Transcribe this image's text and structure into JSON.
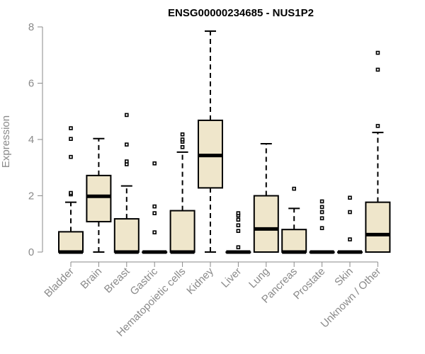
{
  "chart_data": {
    "type": "boxplot",
    "title": "ENSG00000234685 - NUS1P2",
    "xlabel": "",
    "ylabel": "Expression",
    "ylim": [
      0,
      8
    ],
    "yticks": [
      0,
      2,
      4,
      6,
      8
    ],
    "grid": false,
    "colors": {
      "box_fill": "#efe6cb",
      "box_stroke": "#000000",
      "axis": "#8a8a8a"
    },
    "categories": [
      "Bladder",
      "Brain",
      "Breast",
      "Gastric",
      "Hematopoietic cells",
      "Kidney",
      "Liver",
      "Lung",
      "Pancreas",
      "Prostate",
      "Skin",
      "Unknown / Other"
    ],
    "boxes": [
      {
        "category": "Bladder",
        "low": 0,
        "q1": 0,
        "median": 0,
        "q3": 0.72,
        "high": 1.77,
        "outliers": [
          2.05,
          2.1,
          3.38,
          4.02,
          4.4
        ]
      },
      {
        "category": "Brain",
        "low": 0,
        "q1": 1.08,
        "median": 1.98,
        "q3": 2.72,
        "high": 4.03,
        "outliers": []
      },
      {
        "category": "Breast",
        "low": 0,
        "q1": 0,
        "median": 0,
        "q3": 1.18,
        "high": 2.35,
        "outliers": [
          3.12,
          3.22,
          3.82,
          4.87
        ]
      },
      {
        "category": "Gastric",
        "low": 0,
        "q1": 0,
        "median": 0,
        "q3": 0,
        "high": 0,
        "outliers": [
          0.7,
          1.38,
          1.62,
          3.15
        ]
      },
      {
        "category": "Hematopoietic cells",
        "low": 0,
        "q1": 0,
        "median": 0,
        "q3": 1.47,
        "high": 3.55,
        "outliers": [
          3.73,
          3.92,
          4.0,
          4.18
        ]
      },
      {
        "category": "Kidney",
        "low": 0,
        "q1": 2.28,
        "median": 3.43,
        "q3": 4.68,
        "high": 7.85,
        "outliers": []
      },
      {
        "category": "Liver",
        "low": 0,
        "q1": 0,
        "median": 0,
        "q3": 0,
        "high": 0,
        "outliers": [
          0.17,
          0.75,
          0.95,
          1.15,
          1.3,
          1.38
        ]
      },
      {
        "category": "Lung",
        "low": 0,
        "q1": 0,
        "median": 0.82,
        "q3": 2.0,
        "high": 3.85,
        "outliers": []
      },
      {
        "category": "Pancreas",
        "low": 0,
        "q1": 0,
        "median": 0,
        "q3": 0.8,
        "high": 1.55,
        "outliers": [
          2.25
        ]
      },
      {
        "category": "Prostate",
        "low": 0,
        "q1": 0,
        "median": 0,
        "q3": 0,
        "high": 0,
        "outliers": [
          0.85,
          1.2,
          1.42,
          1.6,
          1.8
        ]
      },
      {
        "category": "Skin",
        "low": 0,
        "q1": 0,
        "median": 0,
        "q3": 0,
        "high": 0,
        "outliers": [
          0.45,
          1.42,
          1.93
        ]
      },
      {
        "category": "Unknown / Other",
        "low": 0,
        "q1": 0,
        "median": 0.62,
        "q3": 1.77,
        "high": 4.25,
        "outliers": [
          4.48,
          6.48,
          7.08
        ]
      }
    ]
  }
}
